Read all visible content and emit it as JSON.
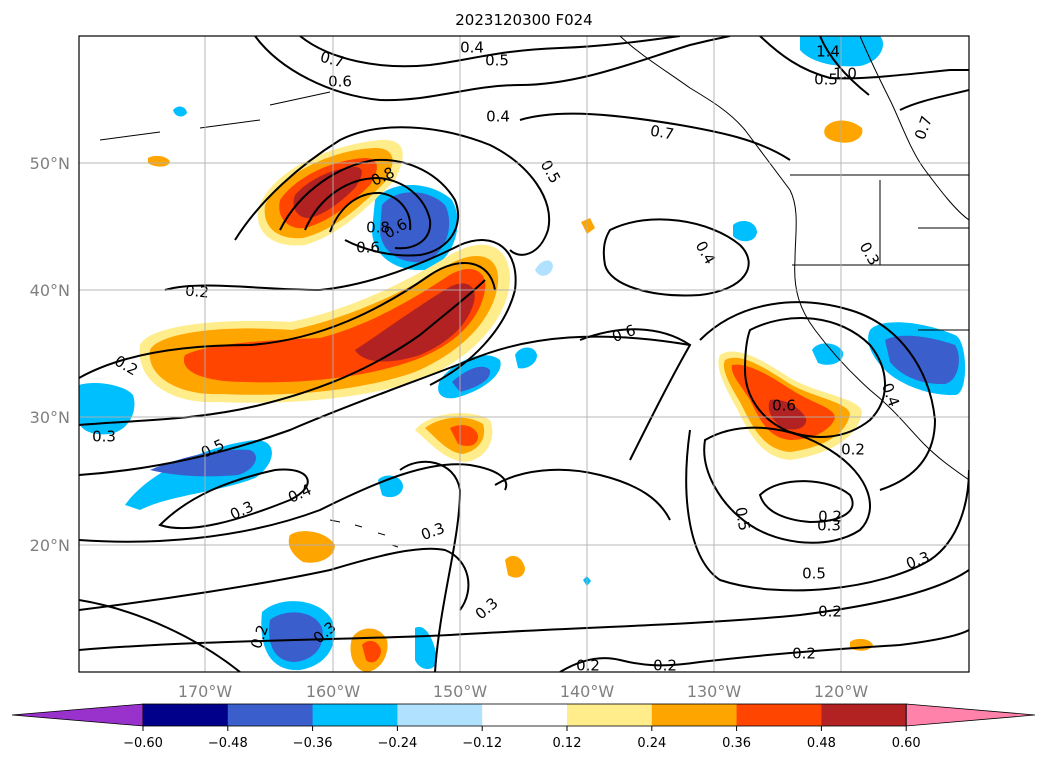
{
  "title": "2023120300 F024",
  "map": {
    "lat_labels": [
      "50°N",
      "40°N",
      "30°N",
      "20°N"
    ],
    "lon_labels": [
      "170°W",
      "160°W",
      "150°W",
      "140°W",
      "130°W",
      "120°W"
    ],
    "region": "North Pacific / North America west coast",
    "gridlines": true,
    "shaded_field_sign_colors": {
      "positive": "warm",
      "negative": "cool"
    },
    "contour_labels": [
      "0.7",
      "0.4",
      "0.5",
      "0.6",
      "1.4",
      "1.0",
      "0.8",
      "0.5",
      "0.4",
      "0.7",
      "0.7",
      "0.5",
      "0.8",
      "0.6",
      "0.6",
      "0.3",
      "0.2",
      "0.2",
      "0.4",
      "0.6",
      "0.5",
      "0.3",
      "0.3",
      "0.4",
      "0.3",
      "0.3",
      "0.5",
      "0.2",
      "0.3",
      "0.5",
      "0.4",
      "0.2",
      "0.2",
      "0.2",
      "0.2",
      "0.2",
      "0.3",
      "0.6",
      "0.2",
      "0.3"
    ]
  },
  "colorbar": {
    "ticks": [
      "−0.60",
      "−0.48",
      "−0.36",
      "−0.24",
      "−0.12",
      "0.12",
      "0.24",
      "0.36",
      "0.48",
      "0.60"
    ],
    "colors": [
      "#9932cc",
      "#00008b",
      "#3a5fcd",
      "#00bfff",
      "#b0e2ff",
      "#ffffff",
      "#ffec8b",
      "#ffa500",
      "#ff4500",
      "#b22222",
      "#ff82ab"
    ],
    "extend": "both"
  }
}
